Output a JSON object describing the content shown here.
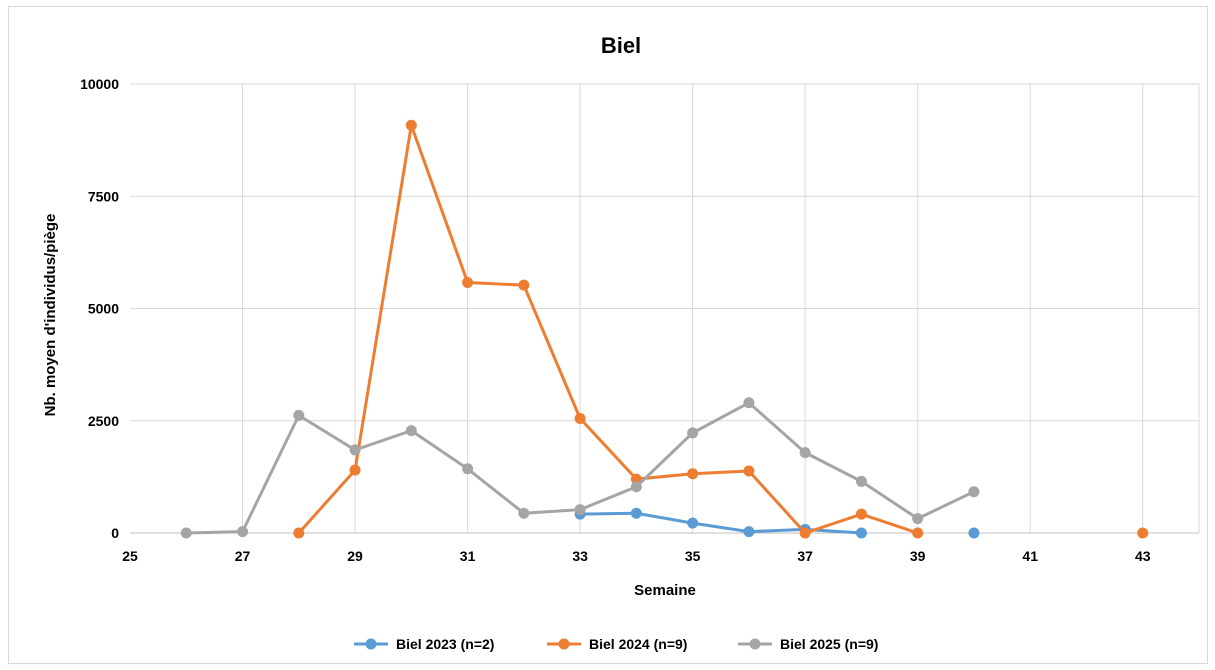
{
  "chart_data": {
    "type": "line",
    "title": "Biel",
    "xlabel": "Semaine",
    "ylabel": "Nb. moyen d'individus/piège",
    "xlim": [
      25,
      44
    ],
    "ylim": [
      0,
      10000
    ],
    "x_ticks": [
      25,
      27,
      29,
      31,
      33,
      35,
      37,
      39,
      41,
      43
    ],
    "y_ticks": [
      0,
      2500,
      5000,
      7500,
      10000
    ],
    "grid": true,
    "legend_position": "bottom",
    "series": [
      {
        "name": "Biel 2023 (n=2)",
        "color": "#5b9bd5",
        "segments": [
          [
            [
              33,
              420
            ],
            [
              34,
              440
            ],
            [
              35,
              220
            ],
            [
              36,
              30
            ],
            [
              37,
              80
            ],
            [
              38,
              0
            ]
          ],
          [
            [
              40,
              0
            ]
          ]
        ]
      },
      {
        "name": "Biel 2024 (n=9)",
        "color": "#ed7d31",
        "segments": [
          [
            [
              28,
              0
            ],
            [
              29,
              1400
            ],
            [
              30,
              9080
            ],
            [
              31,
              5580
            ],
            [
              32,
              5520
            ],
            [
              33,
              2550
            ],
            [
              34,
              1200
            ],
            [
              35,
              1320
            ],
            [
              36,
              1380
            ],
            [
              37,
              0
            ],
            [
              38,
              420
            ],
            [
              39,
              0
            ]
          ],
          [
            [
              43,
              0
            ]
          ]
        ]
      },
      {
        "name": "Biel 2025 (n=9)",
        "color": "#a5a5a5",
        "segments": [
          [
            [
              26,
              0
            ],
            [
              27,
              30
            ],
            [
              28,
              2620
            ],
            [
              29,
              1850
            ],
            [
              30,
              2280
            ],
            [
              31,
              1430
            ],
            [
              32,
              440
            ],
            [
              33,
              520
            ],
            [
              34,
              1030
            ],
            [
              35,
              2230
            ],
            [
              36,
              2900
            ],
            [
              37,
              1790
            ],
            [
              38,
              1150
            ],
            [
              39,
              320
            ],
            [
              40,
              920
            ]
          ]
        ]
      }
    ]
  }
}
